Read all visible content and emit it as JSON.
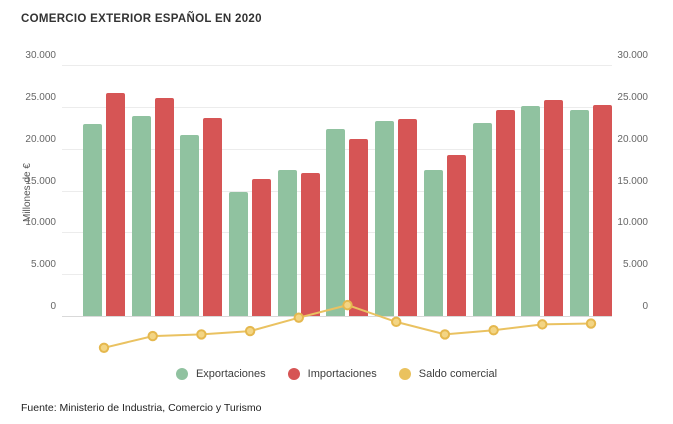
{
  "title": "COMERCIO EXTERIOR ESPAÑOL EN 2020",
  "source": "Fuente: Ministerio de Industria, Comercio y Turismo",
  "y_axis": {
    "label": "Millones de €",
    "tick_labels": [
      "30.000",
      "25.000",
      "20.000",
      "15.000",
      "10.000",
      "5.000",
      "0"
    ],
    "tick_values": [
      30000,
      25000,
      20000,
      15000,
      10000,
      5000,
      0
    ]
  },
  "legend": [
    {
      "label": "Exportaciones",
      "color": "#90c2a0"
    },
    {
      "label": "Importaciones",
      "color": "#d65555"
    },
    {
      "label": "Saldo comercial",
      "color": "#eac25e"
    }
  ],
  "colors": {
    "exportaciones": "#90c2a0",
    "importaciones": "#d65555",
    "saldo_line": "#eac261",
    "saldo_dot_fill": "#f3d584",
    "saldo_dot_stroke": "#e5b84e",
    "grid": "#ececec",
    "zero_line": "#d9d9d9"
  },
  "chart_data": {
    "type": "bar",
    "title": "COMERCIO EXTERIOR ESPAÑOL EN 2020",
    "ylabel": "Millones de €",
    "ylim": [
      0,
      30000
    ],
    "y_ticks": [
      0,
      5000,
      10000,
      15000,
      20000,
      25000,
      30000
    ],
    "x_axis_labels_shown": false,
    "num_groups": 11,
    "legend_position": "bottom",
    "grid": true,
    "series": [
      {
        "name": "Exportaciones",
        "type": "bar",
        "color": "#90c2a0",
        "values": [
          23000,
          23900,
          21600,
          14800,
          17400,
          22400,
          23300,
          17500,
          23100,
          25100,
          24600
        ]
      },
      {
        "name": "Importaciones",
        "type": "bar",
        "color": "#d65555",
        "values": [
          26600,
          26000,
          23700,
          16400,
          17100,
          21100,
          23600,
          19200,
          24600,
          25800,
          25200
        ]
      },
      {
        "name": "Saldo comercial",
        "type": "line",
        "color": "#eac261",
        "values": [
          -3800,
          -2400,
          -2200,
          -1800,
          -200,
          1300,
          -700,
          -2200,
          -1700,
          -1000,
          -900
        ]
      }
    ]
  }
}
